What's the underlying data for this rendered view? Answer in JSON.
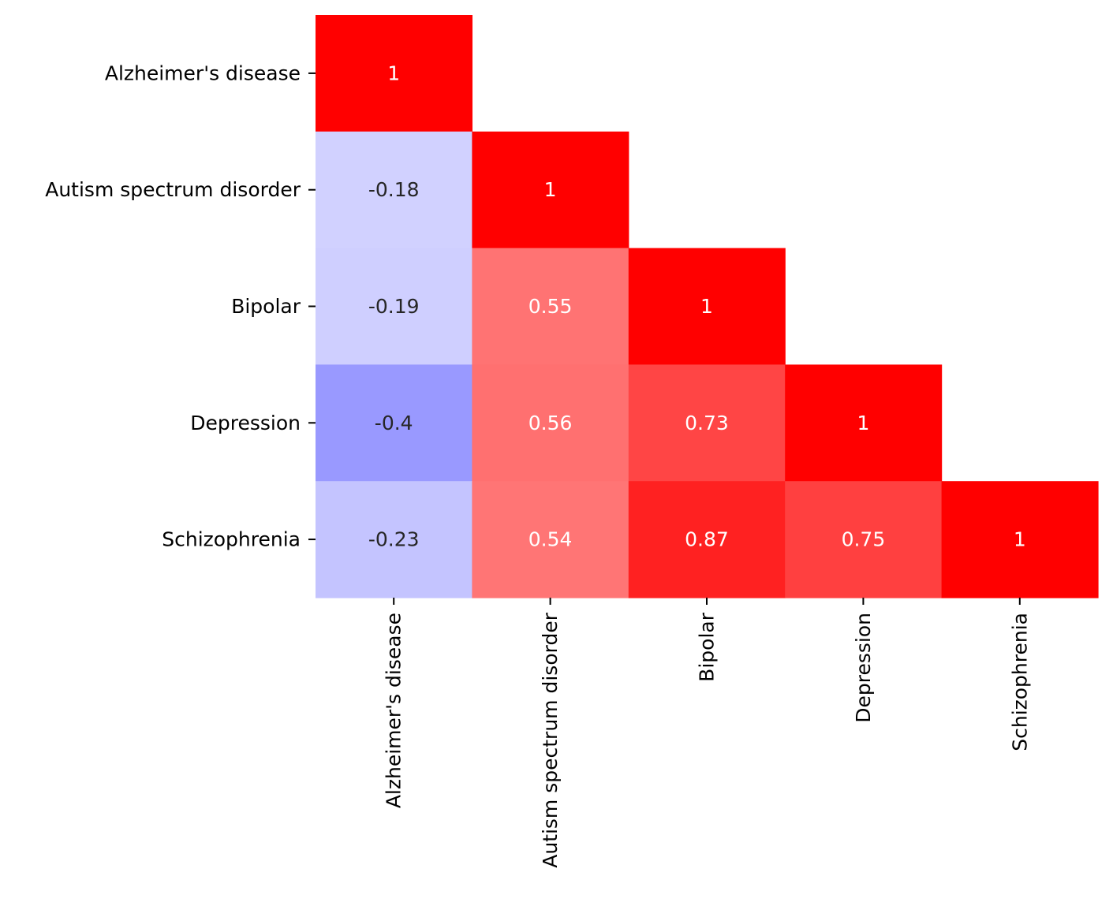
{
  "chart_data": {
    "type": "heatmap",
    "title": "",
    "xlabel": "",
    "ylabel": "",
    "x_categories": [
      "Alzheimer's disease",
      "Autism spectrum disorder",
      "Bipolar",
      "Depression",
      "Schizophrenia"
    ],
    "y_categories": [
      "Alzheimer's disease",
      "Autism spectrum disorder",
      "Bipolar",
      "Depression",
      "Schizophrenia"
    ],
    "mask": "upper-triangle",
    "colormap": "bwr",
    "vmin": -1,
    "vmax": 1,
    "colorbar": false,
    "cells": [
      {
        "row": 0,
        "col": 0,
        "value": 1,
        "label": "1"
      },
      {
        "row": 1,
        "col": 0,
        "value": -0.18,
        "label": "-0.18"
      },
      {
        "row": 1,
        "col": 1,
        "value": 1,
        "label": "1"
      },
      {
        "row": 2,
        "col": 0,
        "value": -0.19,
        "label": "-0.19"
      },
      {
        "row": 2,
        "col": 1,
        "value": 0.55,
        "label": "0.55"
      },
      {
        "row": 2,
        "col": 2,
        "value": 1,
        "label": "1"
      },
      {
        "row": 3,
        "col": 0,
        "value": -0.4,
        "label": "-0.4"
      },
      {
        "row": 3,
        "col": 1,
        "value": 0.56,
        "label": "0.56"
      },
      {
        "row": 3,
        "col": 2,
        "value": 0.73,
        "label": "0.73"
      },
      {
        "row": 3,
        "col": 3,
        "value": 1,
        "label": "1"
      },
      {
        "row": 4,
        "col": 0,
        "value": -0.23,
        "label": "-0.23"
      },
      {
        "row": 4,
        "col": 1,
        "value": 0.54,
        "label": "0.54"
      },
      {
        "row": 4,
        "col": 2,
        "value": 0.87,
        "label": "0.87"
      },
      {
        "row": 4,
        "col": 3,
        "value": 0.75,
        "label": "0.75"
      },
      {
        "row": 4,
        "col": 4,
        "value": 1,
        "label": "1"
      }
    ]
  }
}
